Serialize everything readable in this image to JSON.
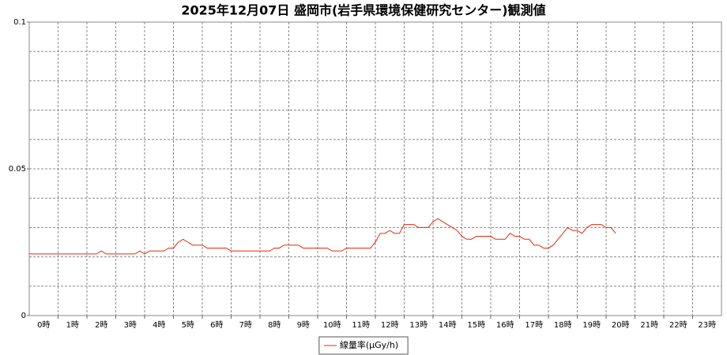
{
  "chart_data": {
    "type": "line",
    "title": "2025年12月07日 盛岡市(岩手県環境保健研究センター)観測値",
    "xlim": [
      0,
      1440
    ],
    "xticks": [
      {
        "value": 30,
        "label": "0時"
      },
      {
        "value": 90,
        "label": "1時"
      },
      {
        "value": 150,
        "label": "2時"
      },
      {
        "value": 210,
        "label": "3時"
      },
      {
        "value": 270,
        "label": "4時"
      },
      {
        "value": 330,
        "label": "5時"
      },
      {
        "value": 390,
        "label": "6時"
      },
      {
        "value": 450,
        "label": "7時"
      },
      {
        "value": 510,
        "label": "8時"
      },
      {
        "value": 570,
        "label": "9時"
      },
      {
        "value": 630,
        "label": "10時"
      },
      {
        "value": 690,
        "label": "11時"
      },
      {
        "value": 750,
        "label": "12時"
      },
      {
        "value": 810,
        "label": "13時"
      },
      {
        "value": 870,
        "label": "14時"
      },
      {
        "value": 930,
        "label": "15時"
      },
      {
        "value": 990,
        "label": "16時"
      },
      {
        "value": 1050,
        "label": "17時"
      },
      {
        "value": 1110,
        "label": "18時"
      },
      {
        "value": 1170,
        "label": "19時"
      },
      {
        "value": 1230,
        "label": "20時"
      },
      {
        "value": 1290,
        "label": "21時"
      },
      {
        "value": 1350,
        "label": "22時"
      },
      {
        "value": 1410,
        "label": "23時"
      }
    ],
    "xgrid": [
      60,
      120,
      180,
      240,
      300,
      360,
      420,
      480,
      540,
      600,
      660,
      720,
      780,
      840,
      900,
      960,
      1020,
      1080,
      1140,
      1200,
      1260,
      1320,
      1380
    ],
    "ylim": [
      0,
      0.1
    ],
    "yticks": [
      0,
      0.05,
      0.1
    ],
    "ygrid": [
      0.01,
      0.02,
      0.03,
      0.04,
      0.05,
      0.06,
      0.07,
      0.08,
      0.09
    ],
    "grid": true,
    "legend": "bottom",
    "x": [
      0,
      10,
      20,
      30,
      40,
      50,
      60,
      70,
      80,
      90,
      100,
      110,
      120,
      130,
      140,
      150,
      160,
      170,
      180,
      190,
      200,
      210,
      220,
      230,
      240,
      250,
      260,
      270,
      280,
      290,
      300,
      310,
      320,
      330,
      340,
      350,
      360,
      370,
      380,
      390,
      400,
      410,
      420,
      430,
      440,
      450,
      460,
      470,
      480,
      490,
      500,
      510,
      520,
      530,
      540,
      550,
      560,
      570,
      580,
      590,
      600,
      610,
      620,
      630,
      640,
      650,
      660,
      670,
      680,
      690,
      700,
      710,
      720,
      730,
      740,
      750,
      760,
      770,
      780,
      790,
      800,
      810,
      820,
      830,
      840,
      850,
      860,
      870,
      880,
      890,
      900,
      910,
      920,
      930,
      940,
      950,
      960,
      970,
      980,
      990,
      1000,
      1010,
      1020,
      1030,
      1040,
      1050,
      1060,
      1070,
      1080,
      1090,
      1100,
      1110,
      1120,
      1130,
      1140,
      1150,
      1160,
      1170,
      1180,
      1190,
      1200,
      1210,
      1220
    ],
    "series": [
      {
        "name": "線量率(μGy/h)",
        "color": "#e8280e",
        "values": [
          0.021,
          0.021,
          0.021,
          0.021,
          0.021,
          0.021,
          0.021,
          0.021,
          0.021,
          0.021,
          0.021,
          0.021,
          0.021,
          0.021,
          0.021,
          0.022,
          0.021,
          0.021,
          0.021,
          0.021,
          0.021,
          0.021,
          0.021,
          0.022,
          0.021,
          0.022,
          0.022,
          0.022,
          0.022,
          0.023,
          0.023,
          0.025,
          0.026,
          0.025,
          0.024,
          0.024,
          0.024,
          0.023,
          0.023,
          0.023,
          0.023,
          0.023,
          0.022,
          0.022,
          0.022,
          0.022,
          0.022,
          0.022,
          0.022,
          0.022,
          0.022,
          0.023,
          0.023,
          0.024,
          0.024,
          0.024,
          0.024,
          0.023,
          0.023,
          0.023,
          0.023,
          0.023,
          0.023,
          0.022,
          0.022,
          0.022,
          0.023,
          0.023,
          0.023,
          0.023,
          0.023,
          0.023,
          0.025,
          0.028,
          0.028,
          0.029,
          0.028,
          0.028,
          0.031,
          0.031,
          0.031,
          0.03,
          0.03,
          0.03,
          0.032,
          0.033,
          0.032,
          0.031,
          0.03,
          0.029,
          0.027,
          0.026,
          0.026,
          0.027,
          0.027,
          0.027,
          0.027,
          0.026,
          0.026,
          0.026,
          0.028,
          0.027,
          0.027,
          0.026,
          0.026,
          0.024,
          0.024,
          0.023,
          0.023,
          0.024,
          0.026,
          0.028,
          0.03,
          0.029,
          0.029,
          0.028,
          0.03,
          0.031,
          0.031,
          0.031,
          0.03,
          0.03,
          0.028
        ]
      }
    ]
  }
}
